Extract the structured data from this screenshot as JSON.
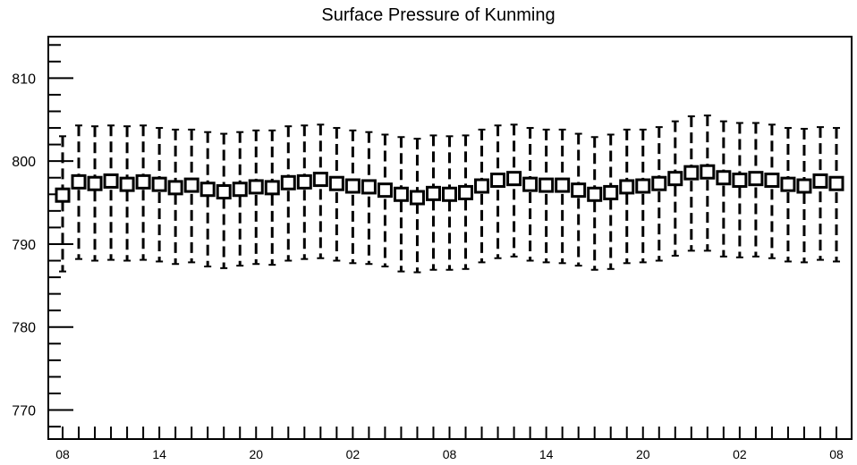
{
  "chart_data": {
    "type": "boxplot",
    "title": "Surface Pressure of Kunming",
    "xlabel": "",
    "ylabel": "",
    "ylim": [
      766.5,
      815
    ],
    "y_ticks": [
      770,
      780,
      790,
      800,
      810
    ],
    "x_tick_labels": [
      "08",
      "14",
      "20",
      "02",
      "08",
      "14",
      "20",
      "02",
      "08"
    ],
    "x_tick_steps": [
      0,
      6,
      12,
      18,
      24,
      30,
      36,
      42,
      48
    ],
    "x_count": 49,
    "grid": false,
    "series": [
      {
        "mean": [
          795.9,
          797.5,
          797.3,
          797.6,
          797.2,
          797.5,
          797.2,
          796.8,
          797.1,
          796.6,
          796.3,
          796.6,
          796.9,
          796.8,
          797.4,
          797.5,
          797.8,
          797.3,
          797.0,
          796.9,
          796.5,
          796.0,
          795.6,
          796.1,
          796.0,
          796.2,
          797.0,
          797.7,
          797.9,
          797.2,
          797.1,
          797.1,
          796.5,
          796.0,
          796.2,
          796.9,
          797.0,
          797.3,
          797.9,
          798.6,
          798.7,
          798.0,
          797.7,
          797.9,
          797.7,
          797.2,
          797.0,
          797.6,
          797.3
        ],
        "whisker_high": [
          803.0,
          804.3,
          804.2,
          804.3,
          804.2,
          804.3,
          804.0,
          803.8,
          803.8,
          803.5,
          803.3,
          803.5,
          803.7,
          803.7,
          804.2,
          804.3,
          804.4,
          804.0,
          803.7,
          803.5,
          803.2,
          802.9,
          802.7,
          803.1,
          803.0,
          803.1,
          803.8,
          804.3,
          804.4,
          804.0,
          803.8,
          803.8,
          803.3,
          802.9,
          803.2,
          803.8,
          803.8,
          804.1,
          804.8,
          805.4,
          805.5,
          804.8,
          804.6,
          804.6,
          804.4,
          804.0,
          803.9,
          804.1,
          804.0
        ],
        "whisker_low": [
          786.7,
          788.2,
          788.0,
          788.1,
          788.0,
          788.1,
          787.9,
          787.6,
          787.8,
          787.3,
          787.1,
          787.4,
          787.6,
          787.5,
          788.0,
          788.2,
          788.3,
          788.0,
          787.7,
          787.6,
          787.3,
          786.7,
          786.6,
          786.9,
          786.9,
          787.0,
          787.8,
          788.3,
          788.5,
          788.0,
          787.8,
          787.7,
          787.4,
          786.9,
          787.0,
          787.7,
          787.8,
          788.0,
          788.6,
          789.2,
          789.2,
          788.5,
          788.4,
          788.5,
          788.3,
          787.9,
          787.8,
          788.1,
          787.9
        ]
      }
    ]
  }
}
